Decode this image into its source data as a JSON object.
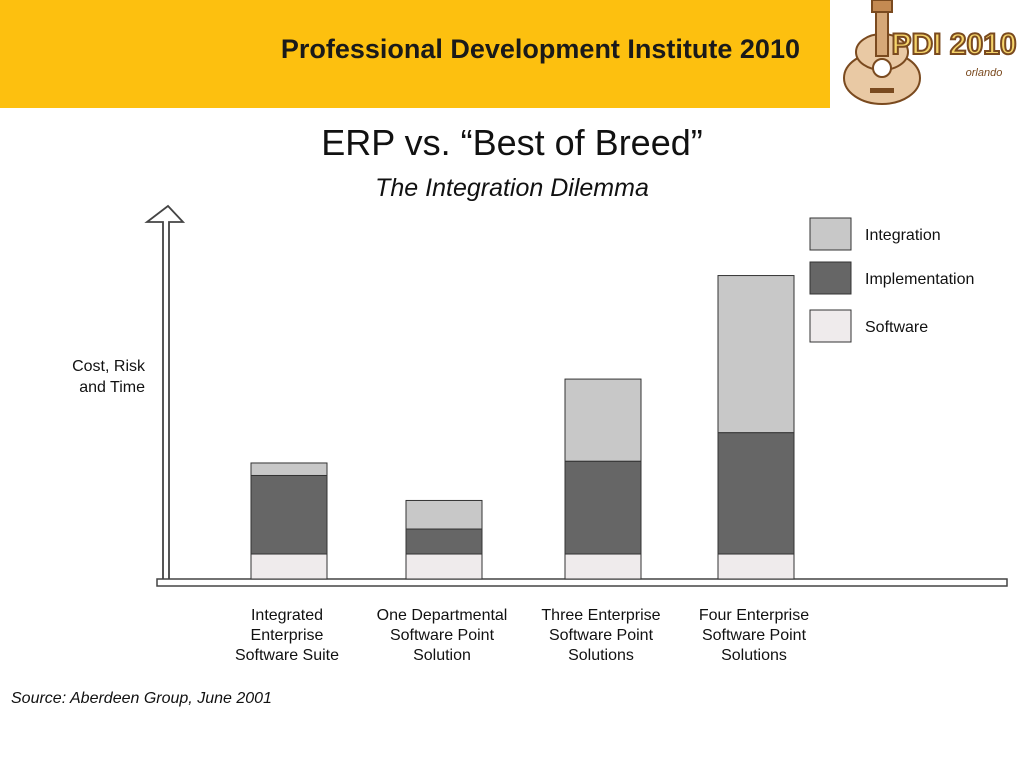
{
  "header": {
    "title": "Professional Development Institute 2010",
    "logo_text": "PDI 2010",
    "logo_subtext": "orlando"
  },
  "slide": {
    "title": "ERP vs. “Best of Breed”",
    "subtitle": "The Integration Dilemma"
  },
  "chart_data": {
    "type": "bar",
    "stacked": true,
    "title": "",
    "ylabel": [
      "Cost, Risk",
      "and Time"
    ],
    "xlabel": "",
    "ylim": [
      0,
      100
    ],
    "y_ticks": false,
    "grid": false,
    "legend_position": "top-right",
    "categories": [
      [
        "Integrated",
        "Enterprise",
        "Software Suite"
      ],
      [
        "One Departmental",
        "Software Point",
        "Solution"
      ],
      [
        "Three Enterprise",
        "Software Point",
        "Solutions"
      ],
      [
        "Four Enterprise",
        "Software Point",
        "Solutions"
      ]
    ],
    "series": [
      {
        "name": "Software",
        "color": "#efebec",
        "values": [
          7,
          7,
          7,
          7
        ]
      },
      {
        "name": "Implementation",
        "color": "#666666",
        "values": [
          22,
          7,
          26,
          34
        ]
      },
      {
        "name": "Integration",
        "color": "#c8c8c8",
        "values": [
          3.5,
          8,
          23,
          44
        ]
      }
    ],
    "legend_order": [
      "Integration",
      "Implementation",
      "Software"
    ]
  },
  "source": "Source: Aberdeen Group, June 2001"
}
